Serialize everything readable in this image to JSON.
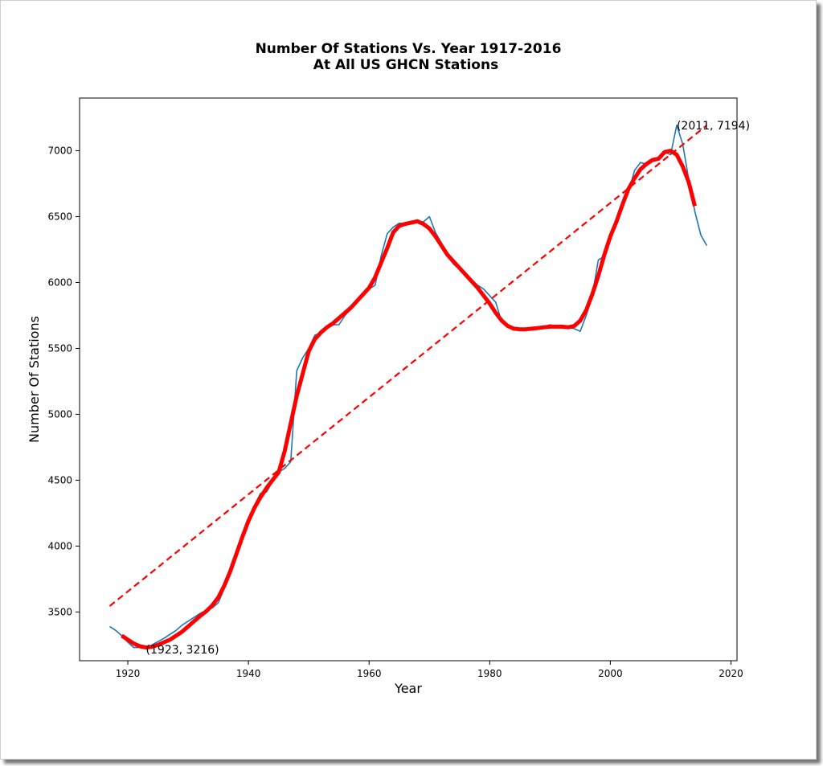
{
  "chart_data": {
    "type": "line",
    "title": "Number Of Stations Vs. Year 1917-2016",
    "subtitle": "At All US GHCN Stations",
    "xlabel": "Year",
    "ylabel": "Number Of Stations",
    "xlim": [
      1912,
      2021
    ],
    "ylim": [
      3130,
      7400
    ],
    "x_ticks": [
      1920,
      1940,
      1960,
      1980,
      2000,
      2020
    ],
    "y_ticks": [
      3500,
      4000,
      4500,
      5000,
      5500,
      6000,
      6500,
      7000
    ],
    "grid": false,
    "colors": {
      "raw": "#1f77b4",
      "smooth": "#ff0000",
      "trend": "#ff0000"
    },
    "series": [
      {
        "style": "thin solid blue",
        "x": [
          1917,
          1918,
          1919,
          1920,
          1921,
          1922,
          1923,
          1924,
          1925,
          1926,
          1927,
          1928,
          1929,
          1930,
          1931,
          1932,
          1933,
          1934,
          1935,
          1936,
          1937,
          1938,
          1939,
          1940,
          1941,
          1942,
          1943,
          1944,
          1945,
          1946,
          1947,
          1948,
          1949,
          1950,
          1951,
          1952,
          1953,
          1954,
          1955,
          1956,
          1957,
          1958,
          1959,
          1960,
          1961,
          1962,
          1963,
          1964,
          1965,
          1966,
          1967,
          1968,
          1969,
          1970,
          1971,
          1972,
          1973,
          1974,
          1975,
          1976,
          1977,
          1978,
          1979,
          1980,
          1981,
          1982,
          1983,
          1984,
          1985,
          1986,
          1987,
          1988,
          1989,
          1990,
          1991,
          1992,
          1993,
          1994,
          1995,
          1996,
          1997,
          1998,
          1999,
          2000,
          2001,
          2002,
          2003,
          2004,
          2005,
          2006,
          2007,
          2008,
          2009,
          2010,
          2011,
          2012,
          2013,
          2014,
          2015,
          2016
        ],
        "y": [
          3390,
          3360,
          3320,
          3270,
          3230,
          3230,
          3225,
          3250,
          3275,
          3300,
          3330,
          3360,
          3400,
          3430,
          3460,
          3490,
          3510,
          3530,
          3570,
          3680,
          3800,
          3930,
          4060,
          4190,
          4310,
          4400,
          4410,
          4490,
          4560,
          4590,
          4640,
          5330,
          5430,
          5500,
          5600,
          5620,
          5670,
          5680,
          5680,
          5750,
          5800,
          5850,
          5910,
          5950,
          5980,
          6200,
          6370,
          6420,
          6450,
          6450,
          6450,
          6460,
          6460,
          6500,
          6380,
          6300,
          6200,
          6140,
          6100,
          6060,
          6020,
          5980,
          5950,
          5900,
          5850,
          5700,
          5660,
          5650,
          5640,
          5640,
          5640,
          5650,
          5660,
          5680,
          5670,
          5670,
          5660,
          5650,
          5630,
          5750,
          5900,
          6170,
          6200,
          6350,
          6460,
          6580,
          6680,
          6850,
          6910,
          6900,
          6920,
          6930,
          6990,
          6970,
          7194,
          7050,
          6780,
          6540,
          6360,
          6280
        ]
      },
      {
        "style": "thick solid red (smoothed)",
        "x": [
          1919,
          1920,
          1921,
          1922,
          1923,
          1924,
          1925,
          1926,
          1927,
          1928,
          1929,
          1930,
          1931,
          1932,
          1933,
          1934,
          1935,
          1936,
          1937,
          1938,
          1939,
          1940,
          1941,
          1942,
          1943,
          1944,
          1945,
          1946,
          1947,
          1948,
          1949,
          1950,
          1951,
          1952,
          1953,
          1954,
          1955,
          1956,
          1957,
          1958,
          1959,
          1960,
          1961,
          1962,
          1963,
          1964,
          1965,
          1966,
          1967,
          1968,
          1969,
          1970,
          1971,
          1972,
          1973,
          1974,
          1975,
          1976,
          1977,
          1978,
          1979,
          1980,
          1981,
          1982,
          1983,
          1984,
          1985,
          1986,
          1987,
          1988,
          1989,
          1990,
          1991,
          1992,
          1993,
          1994,
          1995,
          1996,
          1997,
          1998,
          1999,
          2000,
          2001,
          2002,
          2003,
          2004,
          2005,
          2006,
          2007,
          2008,
          2009,
          2010,
          2011,
          2012,
          2013,
          2014
        ],
        "y": [
          3320,
          3290,
          3260,
          3240,
          3230,
          3235,
          3250,
          3270,
          3290,
          3320,
          3350,
          3390,
          3430,
          3470,
          3505,
          3550,
          3610,
          3700,
          3810,
          3940,
          4070,
          4190,
          4290,
          4370,
          4440,
          4500,
          4560,
          4720,
          4930,
          5140,
          5310,
          5480,
          5570,
          5620,
          5660,
          5690,
          5730,
          5770,
          5810,
          5860,
          5910,
          5960,
          6040,
          6150,
          6260,
          6380,
          6430,
          6445,
          6455,
          6465,
          6445,
          6410,
          6350,
          6280,
          6210,
          6160,
          6110,
          6060,
          6010,
          5960,
          5900,
          5840,
          5770,
          5710,
          5670,
          5650,
          5645,
          5645,
          5650,
          5655,
          5660,
          5665,
          5665,
          5665,
          5660,
          5670,
          5710,
          5790,
          5910,
          6050,
          6210,
          6350,
          6460,
          6590,
          6710,
          6790,
          6860,
          6900,
          6930,
          6940,
          6990,
          7000,
          6970,
          6880,
          6760,
          6580
        ]
      },
      {
        "style": "dashed red linear trend",
        "x": [
          1917,
          2016
        ],
        "y": [
          3545,
          7194
        ]
      }
    ],
    "annotations": [
      {
        "text": "(1923, 3216)",
        "x": 1923,
        "y": 3216
      },
      {
        "text": "(2011, 7194)",
        "x": 2011,
        "y": 7194
      }
    ]
  }
}
